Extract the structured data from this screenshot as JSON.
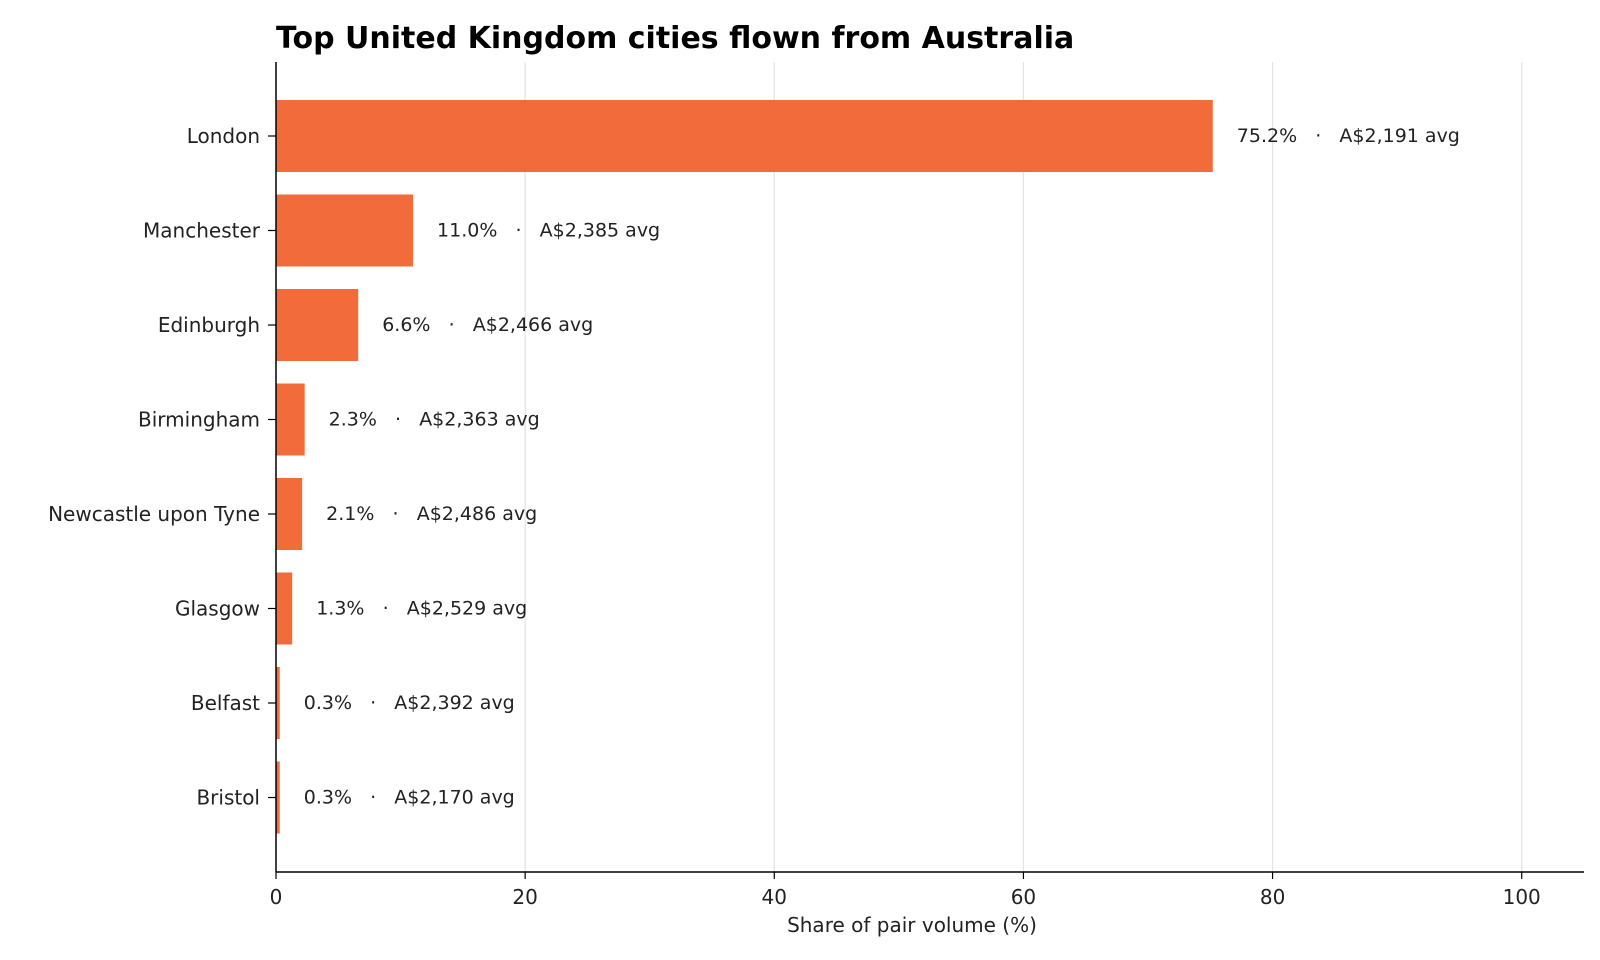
{
  "chart_data": {
    "type": "bar",
    "orientation": "horizontal",
    "title": "Top United Kingdom cities flown from Australia",
    "xlabel": "Share of pair volume (%)",
    "ylabel": "",
    "xlim": [
      0,
      105
    ],
    "xticks": [
      0,
      20,
      40,
      60,
      80,
      100
    ],
    "xtick_labels": [
      "0",
      "20",
      "40",
      "60",
      "80",
      "100"
    ],
    "grid": "vertical",
    "legend": "none",
    "categories": [
      "London",
      "Manchester",
      "Edinburgh",
      "Birmingham",
      "Newcastle upon Tyne",
      "Glasgow",
      "Belfast",
      "Bristol"
    ],
    "values": [
      75.2,
      11.0,
      6.6,
      2.3,
      2.1,
      1.3,
      0.3,
      0.3
    ],
    "data_labels": [
      "75.2%   ·   A$2,191 avg",
      "11.0%   ·   A$2,385 avg",
      "6.6%   ·   A$2,466 avg",
      "2.3%   ·   A$2,363 avg",
      "2.1%   ·   A$2,486 avg",
      "1.3%   ·   A$2,529 avg",
      "0.3%   ·   A$2,392 avg",
      "0.3%   ·   A$2,170 avg"
    ],
    "bar_color": "#f26b3a",
    "grid_color": "#e3e3e3",
    "axis_color": "#000000"
  }
}
